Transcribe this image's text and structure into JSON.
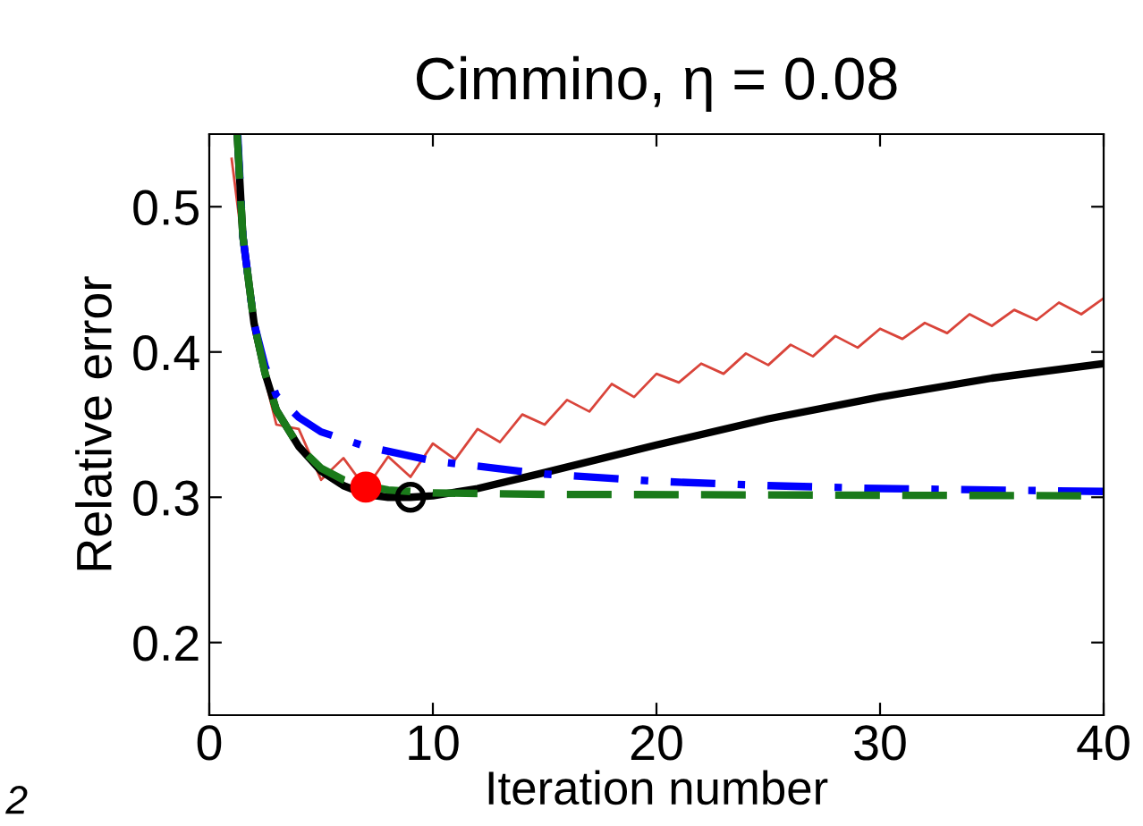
{
  "chart_data": {
    "type": "line",
    "title": "Cimmino, η = 0.08",
    "xlabel": "Iteration number",
    "ylabel": "Relative error",
    "xlim": [
      0,
      40
    ],
    "ylim": [
      0.15,
      0.55
    ],
    "xticks": [
      0,
      10,
      20,
      30,
      40
    ],
    "yticks": [
      0.2,
      0.3,
      0.4,
      0.5
    ],
    "grid": false,
    "legend": false,
    "annotations": [
      "2"
    ],
    "series": [
      {
        "color": "#d9443a",
        "line_style": "solid",
        "marker": "none",
        "x": [
          1,
          2,
          3,
          4,
          5,
          6,
          7,
          8,
          9,
          10,
          11,
          12,
          13,
          14,
          15,
          16,
          17,
          18,
          19,
          20,
          21,
          22,
          23,
          24,
          25,
          26,
          27,
          28,
          29,
          30,
          31,
          32,
          33,
          34,
          35,
          36,
          37,
          38,
          39,
          40
        ],
        "values": [
          0.533,
          0.412,
          0.35,
          0.347,
          0.312,
          0.327,
          0.306,
          0.328,
          0.314,
          0.337,
          0.326,
          0.347,
          0.338,
          0.357,
          0.35,
          0.367,
          0.359,
          0.378,
          0.369,
          0.385,
          0.379,
          0.392,
          0.385,
          0.399,
          0.391,
          0.405,
          0.397,
          0.411,
          0.403,
          0.416,
          0.409,
          0.42,
          0.413,
          0.426,
          0.418,
          0.429,
          0.422,
          0.434,
          0.426,
          0.437
        ]
      },
      {
        "color": "#000000",
        "line_style": "solid",
        "marker": "none",
        "x": [
          1.25,
          1.5,
          2,
          2.5,
          3,
          4,
          5,
          6,
          7,
          8,
          9,
          10,
          12,
          15,
          20,
          25,
          30,
          35,
          40
        ],
        "values": [
          0.55,
          0.48,
          0.42,
          0.385,
          0.36,
          0.335,
          0.318,
          0.308,
          0.302,
          0.3,
          0.3,
          0.301,
          0.306,
          0.317,
          0.336,
          0.354,
          0.369,
          0.382,
          0.392
        ]
      },
      {
        "color": "#0000ff",
        "line_style": "dashdot",
        "marker": "none",
        "x": [
          1.27,
          1.5,
          2,
          2.5,
          3,
          4,
          5,
          7,
          10,
          15,
          20,
          25,
          30,
          40
        ],
        "values": [
          0.55,
          0.48,
          0.42,
          0.39,
          0.37,
          0.355,
          0.345,
          0.335,
          0.325,
          0.316,
          0.311,
          0.308,
          0.306,
          0.304
        ]
      },
      {
        "color": "#1a7a1a",
        "line_style": "dashed",
        "marker": "none",
        "x": [
          1.25,
          1.5,
          2,
          2.5,
          3,
          4,
          5,
          6,
          7,
          8,
          10,
          15,
          40
        ],
        "values": [
          0.55,
          0.48,
          0.42,
          0.385,
          0.36,
          0.335,
          0.32,
          0.312,
          0.308,
          0.305,
          0.303,
          0.302,
          0.301
        ]
      },
      {
        "type": "scatter",
        "color": "#ff0000",
        "marker": "circle",
        "x": [
          7
        ],
        "values": [
          0.307
        ]
      },
      {
        "type": "scatter",
        "color": "#000000",
        "marker": "circle",
        "x": [
          9
        ],
        "values": [
          0.3
        ]
      }
    ]
  }
}
